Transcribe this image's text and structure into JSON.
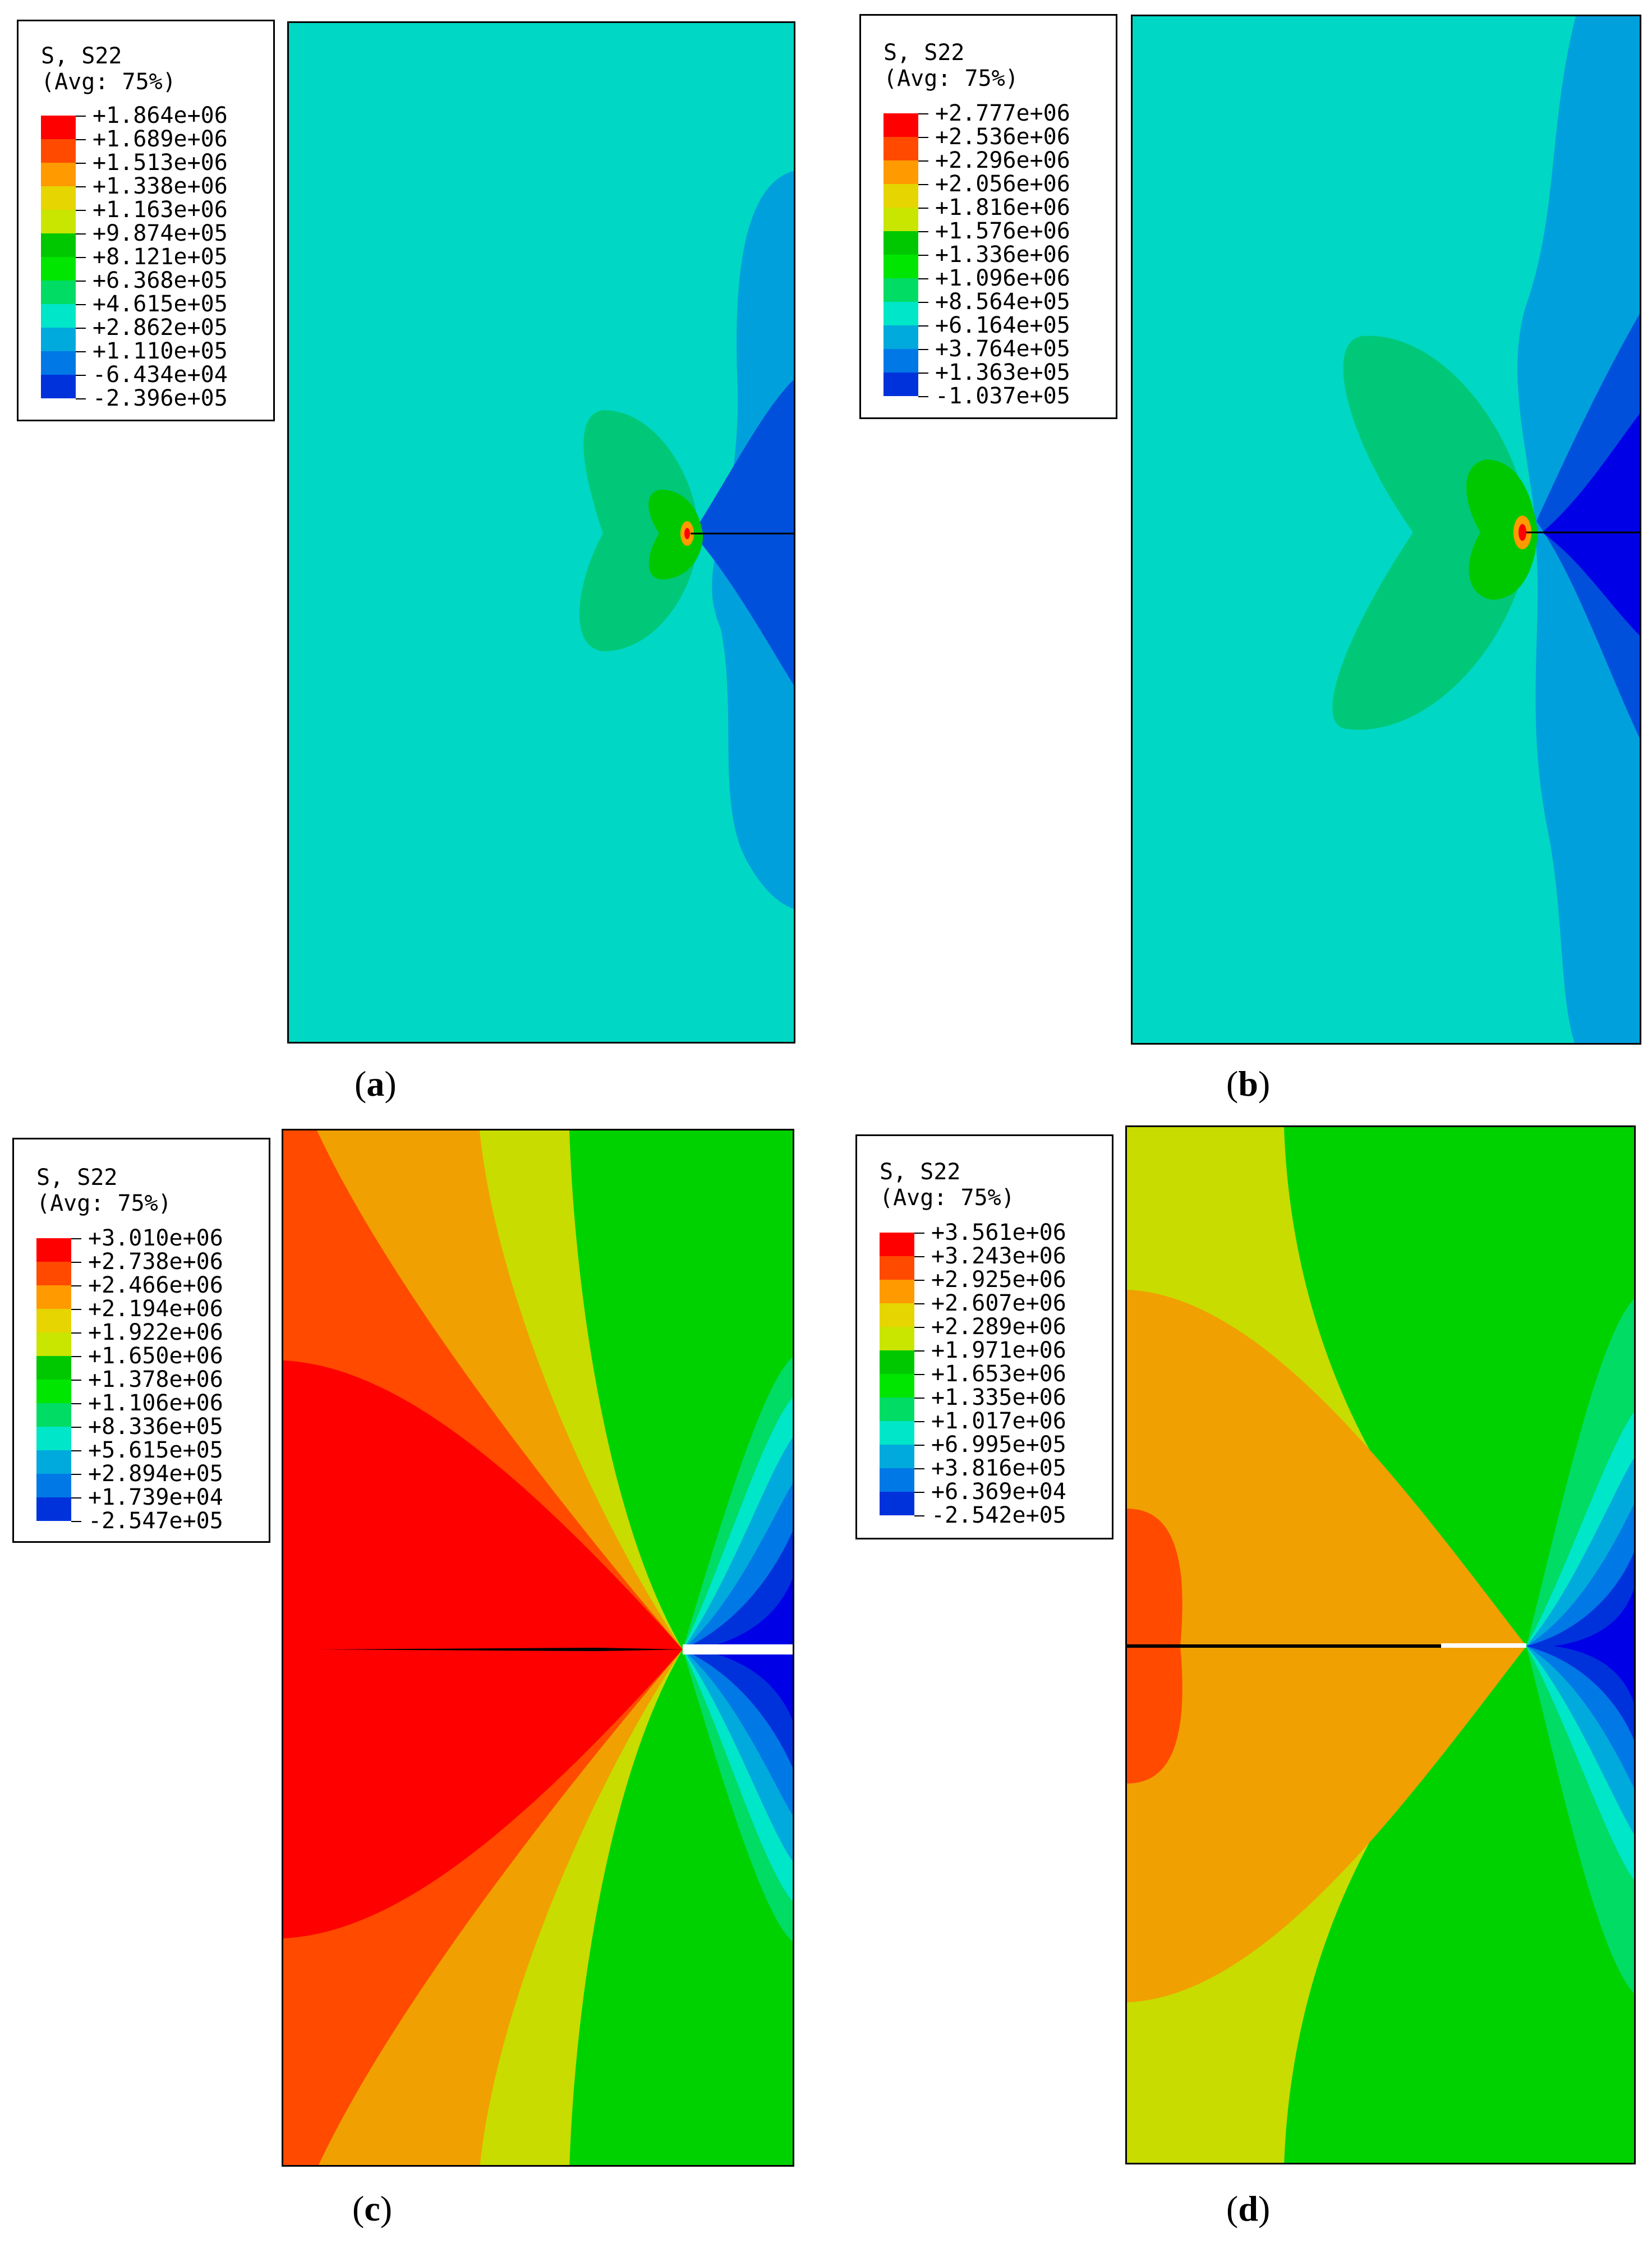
{
  "panels": [
    {
      "id": "a",
      "caption_open": "(",
      "caption_letter": "a",
      "caption_close": ")",
      "legend": {
        "title_line1": "S, S22",
        "title_line2": "(Avg: 75%)",
        "values": [
          "+1.864e+06",
          "+1.689e+06",
          "+1.513e+06",
          "+1.338e+06",
          "+1.163e+06",
          "+9.874e+05",
          "+8.121e+05",
          "+6.368e+05",
          "+4.615e+05",
          "+2.862e+05",
          "+1.110e+05",
          "-6.434e+04",
          "-2.396e+05"
        ]
      },
      "background_color": "#00d7c4"
    },
    {
      "id": "b",
      "caption_open": "(",
      "caption_letter": "b",
      "caption_close": ")",
      "legend": {
        "title_line1": "S, S22",
        "title_line2": "(Avg: 75%)",
        "values": [
          "+2.777e+06",
          "+2.536e+06",
          "+2.296e+06",
          "+2.056e+06",
          "+1.816e+06",
          "+1.576e+06",
          "+1.336e+06",
          "+1.096e+06",
          "+8.564e+05",
          "+6.164e+05",
          "+3.764e+05",
          "+1.363e+05",
          "-1.037e+05"
        ]
      },
      "background_color": "#00d7c4"
    },
    {
      "id": "c",
      "caption_open": "(",
      "caption_letter": "c",
      "caption_close": ")",
      "legend": {
        "title_line1": "S, S22",
        "title_line2": "(Avg: 75%)",
        "values": [
          "+3.010e+06",
          "+2.738e+06",
          "+2.466e+06",
          "+2.194e+06",
          "+1.922e+06",
          "+1.650e+06",
          "+1.378e+06",
          "+1.106e+06",
          "+8.336e+05",
          "+5.615e+05",
          "+2.894e+05",
          "+1.739e+04",
          "-2.547e+05"
        ]
      },
      "background_color": "#00d200"
    },
    {
      "id": "d",
      "caption_open": "(",
      "caption_letter": "d",
      "caption_close": ")",
      "legend": {
        "title_line1": "S, S22",
        "title_line2": "(Avg: 75%)",
        "values": [
          "+3.561e+06",
          "+3.243e+06",
          "+2.925e+06",
          "+2.607e+06",
          "+2.289e+06",
          "+1.971e+06",
          "+1.653e+06",
          "+1.335e+06",
          "+1.017e+06",
          "+6.995e+05",
          "+3.816e+05",
          "+6.369e+04",
          "-2.542e+05"
        ]
      },
      "background_color": "#00d200"
    }
  ],
  "colormap": [
    "#ff0000",
    "#ff4a00",
    "#ff9a00",
    "#e6d500",
    "#c8e600",
    "#00c800",
    "#00e600",
    "#00dc64",
    "#00e6c8",
    "#00aadc",
    "#0078e6",
    "#0032dc",
    "#0000e6"
  ]
}
